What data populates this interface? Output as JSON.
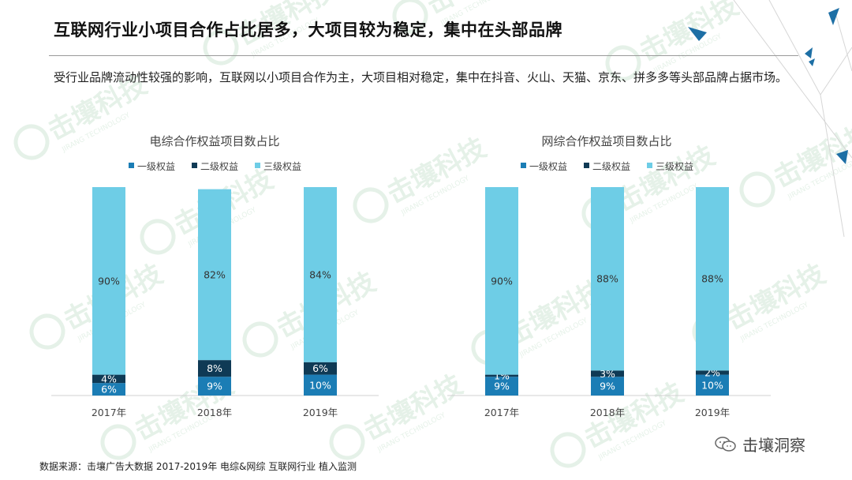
{
  "header": {
    "title": "互联网行业小项目合作占比居多，大项目较为稳定，集中在头部品牌",
    "subtitle": "受行业品牌流动性较强的影响，互联网以小项目合作为主，大项目相对稳定，集中在抖音、火山、天猫、京东、拼多多等头部品牌占据市场。"
  },
  "footer": {
    "source": "数据来源：击壤广告大数据 2017-2019年 电综&网综 互联网行业 植入监测",
    "brand": "击壤洞察",
    "watermark": "击壤科技",
    "watermark_en": "JIRANG TECHNOLOGY"
  },
  "colors": {
    "level1": "#1b7db5",
    "level2": "#0f3a55",
    "level3": "#6ecde6",
    "deco": "#1d6fa5"
  },
  "chart_data": [
    {
      "type": "bar",
      "stacked": true,
      "title": "电综合作权益项目数占比",
      "categories": [
        "2017年",
        "2018年",
        "2019年"
      ],
      "series": [
        {
          "name": "一级权益",
          "values": [
            6,
            9,
            10
          ],
          "labels": [
            "6%",
            "9%",
            "10%"
          ]
        },
        {
          "name": "二级权益",
          "values": [
            4,
            8,
            6
          ],
          "labels": [
            "4%",
            "8%",
            "6%"
          ]
        },
        {
          "name": "三级权益",
          "values": [
            90,
            82,
            84
          ],
          "labels": [
            "90%",
            "82%",
            "84%"
          ]
        }
      ],
      "ylim": [
        0,
        100
      ],
      "legend": "top",
      "grid": false
    },
    {
      "type": "bar",
      "stacked": true,
      "title": "网综合作权益项目数占比",
      "categories": [
        "2017年",
        "2018年",
        "2019年"
      ],
      "series": [
        {
          "name": "一级权益",
          "values": [
            9,
            9,
            10
          ],
          "labels": [
            "9%",
            "9%",
            "10%"
          ]
        },
        {
          "name": "二级权益",
          "values": [
            1,
            3,
            2
          ],
          "labels": [
            "1%",
            "3%",
            "2%"
          ]
        },
        {
          "name": "三级权益",
          "values": [
            90,
            88,
            88
          ],
          "labels": [
            "90%",
            "88%",
            "88%"
          ]
        }
      ],
      "ylim": [
        0,
        100
      ],
      "legend": "top",
      "grid": false
    }
  ]
}
